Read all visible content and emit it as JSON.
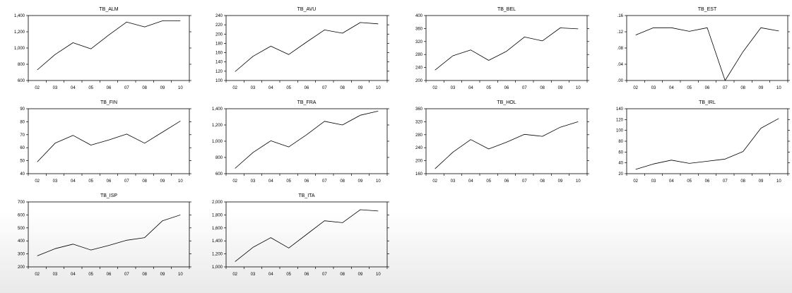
{
  "chart_data": [
    {
      "type": "line",
      "title": "TB_ALM",
      "categories": [
        "02",
        "03",
        "04",
        "05",
        "06",
        "07",
        "08",
        "09",
        "10"
      ],
      "yticks": [
        "600",
        "800",
        "1,000",
        "1,200",
        "1,400"
      ],
      "ylim": [
        600,
        1400
      ],
      "tick_values": [
        600,
        800,
        1000,
        1200,
        1400
      ],
      "values": [
        730,
        920,
        1065,
        990,
        1160,
        1320,
        1260,
        1335,
        1335
      ]
    },
    {
      "type": "line",
      "title": "TB_AVU",
      "categories": [
        "02",
        "03",
        "04",
        "05",
        "06",
        "07",
        "08",
        "09",
        "10"
      ],
      "yticks": [
        "100",
        "120",
        "140",
        "160",
        "180",
        "200",
        "220",
        "240"
      ],
      "ylim": [
        100,
        240
      ],
      "tick_values": [
        100,
        120,
        140,
        160,
        180,
        200,
        220,
        240
      ],
      "values": [
        119,
        152,
        174,
        156,
        183,
        209,
        202,
        225,
        222
      ]
    },
    {
      "type": "line",
      "title": "TB_BEL",
      "categories": [
        "02",
        "03",
        "04",
        "05",
        "06",
        "07",
        "08",
        "09",
        "10"
      ],
      "yticks": [
        "200",
        "240",
        "280",
        "320",
        "360",
        "400"
      ],
      "ylim": [
        200,
        400
      ],
      "tick_values": [
        200,
        240,
        280,
        320,
        360,
        400
      ],
      "values": [
        232,
        276,
        294,
        262,
        290,
        334,
        322,
        362,
        359
      ]
    },
    {
      "type": "line",
      "title": "TB_EST",
      "categories": [
        "02",
        "03",
        "04",
        "05",
        "06",
        "07",
        "08",
        "09",
        "10"
      ],
      "yticks": [
        ".00",
        ".04",
        ".08",
        ".12",
        ".16"
      ],
      "ylim": [
        0,
        0.16
      ],
      "tick_values": [
        0,
        0.04,
        0.08,
        0.12,
        0.16
      ],
      "values": [
        0.112,
        0.13,
        0.13,
        0.121,
        0.13,
        0.0,
        0.071,
        0.13,
        0.122
      ]
    },
    {
      "type": "line",
      "title": "TB_FIN",
      "categories": [
        "02",
        "03",
        "04",
        "05",
        "06",
        "07",
        "08",
        "09",
        "10"
      ],
      "yticks": [
        "40",
        "50",
        "60",
        "70",
        "80",
        "90"
      ],
      "ylim": [
        40,
        90
      ],
      "tick_values": [
        40,
        50,
        60,
        70,
        80,
        90
      ],
      "values": [
        49,
        63.5,
        69.5,
        62,
        66,
        70.5,
        63.5,
        72,
        80.5
      ]
    },
    {
      "type": "line",
      "title": "TB_FRA",
      "categories": [
        "02",
        "03",
        "04",
        "05",
        "06",
        "07",
        "08",
        "09",
        "10"
      ],
      "yticks": [
        "600",
        "800",
        "1,000",
        "1,200",
        "1,400"
      ],
      "ylim": [
        600,
        1400
      ],
      "tick_values": [
        600,
        800,
        1000,
        1200,
        1400
      ],
      "values": [
        665,
        860,
        1005,
        930,
        1080,
        1245,
        1200,
        1320,
        1370
      ]
    },
    {
      "type": "line",
      "title": "TB_HOL",
      "categories": [
        "02",
        "03",
        "04",
        "05",
        "06",
        "07",
        "08",
        "09",
        "10"
      ],
      "yticks": [
        "160",
        "200",
        "240",
        "280",
        "320",
        "360"
      ],
      "ylim": [
        160,
        360
      ],
      "tick_values": [
        160,
        200,
        240,
        280,
        320,
        360
      ],
      "values": [
        175,
        226,
        265,
        236,
        257,
        281,
        275,
        303,
        320
      ]
    },
    {
      "type": "line",
      "title": "TB_IRL",
      "categories": [
        "02",
        "03",
        "04",
        "05",
        "06",
        "07",
        "08",
        "09",
        "10"
      ],
      "yticks": [
        "20",
        "40",
        "60",
        "80",
        "100",
        "120",
        "140"
      ],
      "ylim": [
        20,
        140
      ],
      "tick_values": [
        20,
        40,
        60,
        80,
        100,
        120,
        140
      ],
      "values": [
        28,
        38,
        45,
        39,
        43,
        47,
        61,
        104,
        122
      ]
    },
    {
      "type": "line",
      "title": "TB_ISP",
      "categories": [
        "02",
        "03",
        "04",
        "05",
        "06",
        "07",
        "08",
        "09",
        "10"
      ],
      "yticks": [
        "200",
        "300",
        "400",
        "500",
        "600",
        "700"
      ],
      "ylim": [
        200,
        700
      ],
      "tick_values": [
        200,
        300,
        400,
        500,
        600,
        700
      ],
      "values": [
        285,
        340,
        375,
        330,
        365,
        405,
        425,
        555,
        600
      ]
    },
    {
      "type": "line",
      "title": "TB_ITA",
      "categories": [
        "02",
        "03",
        "04",
        "05",
        "06",
        "07",
        "08",
        "09",
        "10"
      ],
      "yticks": [
        "1,000",
        "1,200",
        "1,400",
        "1,600",
        "1,800",
        "2,000"
      ],
      "ylim": [
        1000,
        2000
      ],
      "tick_values": [
        1000,
        1200,
        1400,
        1600,
        1800,
        2000
      ],
      "values": [
        1080,
        1300,
        1450,
        1290,
        1500,
        1710,
        1680,
        1880,
        1860
      ]
    }
  ]
}
